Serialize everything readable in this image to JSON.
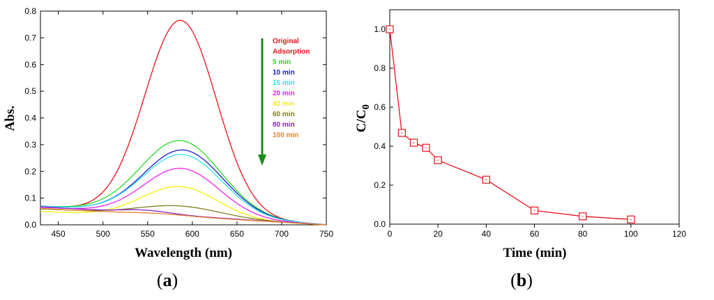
{
  "chart_data": [
    {
      "type": "line",
      "panel_label": "a",
      "xlabel": "Wavelength (nm)",
      "ylabel": "Abs.",
      "xlim": [
        430,
        750
      ],
      "ylim": [
        0,
        0.8
      ],
      "xticks": [
        "450",
        "500",
        "550",
        "600",
        "650",
        "700",
        "750"
      ],
      "yticks": [
        "0.0",
        "0.1",
        "0.2",
        "0.3",
        "0.4",
        "0.5",
        "0.6",
        "0.7",
        "0.8"
      ],
      "legend_position": "top-right",
      "arrow_color": "#1a8a1a",
      "series": [
        {
          "name": "Original",
          "color": "#e8121b",
          "peak": 0.73,
          "center": 587,
          "sigma": 40,
          "baseline": [
            0.07,
            0.0
          ]
        },
        {
          "name": "Adsorption",
          "color": "#e8121b",
          "peak": 0.0,
          "center": 587,
          "sigma": 40,
          "baseline": [
            0.07,
            0.0
          ]
        },
        {
          "name": "5 min",
          "color": "#22dd22",
          "peak": 0.28,
          "center": 587,
          "sigma": 45,
          "baseline": [
            0.07,
            0.0
          ]
        },
        {
          "name": "10 min",
          "color": "#1a1acc",
          "peak": 0.245,
          "center": 590,
          "sigma": 44,
          "baseline": [
            0.07,
            0.0
          ]
        },
        {
          "name": "15 min",
          "color": "#2be4f0",
          "peak": 0.228,
          "center": 589,
          "sigma": 44,
          "baseline": [
            0.07,
            0.0
          ]
        },
        {
          "name": "20 min",
          "color": "#ee22ee",
          "peak": 0.178,
          "center": 588,
          "sigma": 42,
          "baseline": [
            0.066,
            0.0
          ]
        },
        {
          "name": "40 min",
          "color": "#f2f200",
          "peak": 0.118,
          "center": 586,
          "sigma": 42,
          "baseline": [
            0.05,
            0.0
          ]
        },
        {
          "name": "60 min",
          "color": "#7d7d1c",
          "peak": 0.04,
          "center": 585,
          "sigma": 46,
          "baseline": [
            0.06,
            0.0
          ]
        },
        {
          "name": "80 min",
          "color": "#8822cc",
          "peak": 0.012,
          "center": 548,
          "sigma": 28,
          "baseline": [
            0.068,
            0.0
          ]
        },
        {
          "name": "100 min",
          "color": "#e8822a",
          "peak": 0.006,
          "center": 560,
          "sigma": 35,
          "baseline": [
            0.062,
            0.0
          ]
        }
      ]
    },
    {
      "type": "line",
      "panel_label": "b",
      "xlabel": "Time (min)",
      "ylabel": "C/C",
      "ylabel_sub": "0",
      "xlim": [
        0,
        120
      ],
      "ylim": [
        0,
        1.1
      ],
      "xticks": [
        "0",
        "20",
        "40",
        "60",
        "80",
        "100",
        "120"
      ],
      "yticks": [
        "0.0",
        "0.2",
        "0.4",
        "0.6",
        "0.8",
        "1.0"
      ],
      "series": [
        {
          "name": "C/C0",
          "color": "#e8121b",
          "x": [
            0,
            5,
            10,
            15,
            20,
            40,
            60,
            80,
            100
          ],
          "y": [
            1.0,
            0.468,
            0.418,
            0.392,
            0.328,
            0.228,
            0.07,
            0.04,
            0.024
          ]
        }
      ]
    }
  ]
}
